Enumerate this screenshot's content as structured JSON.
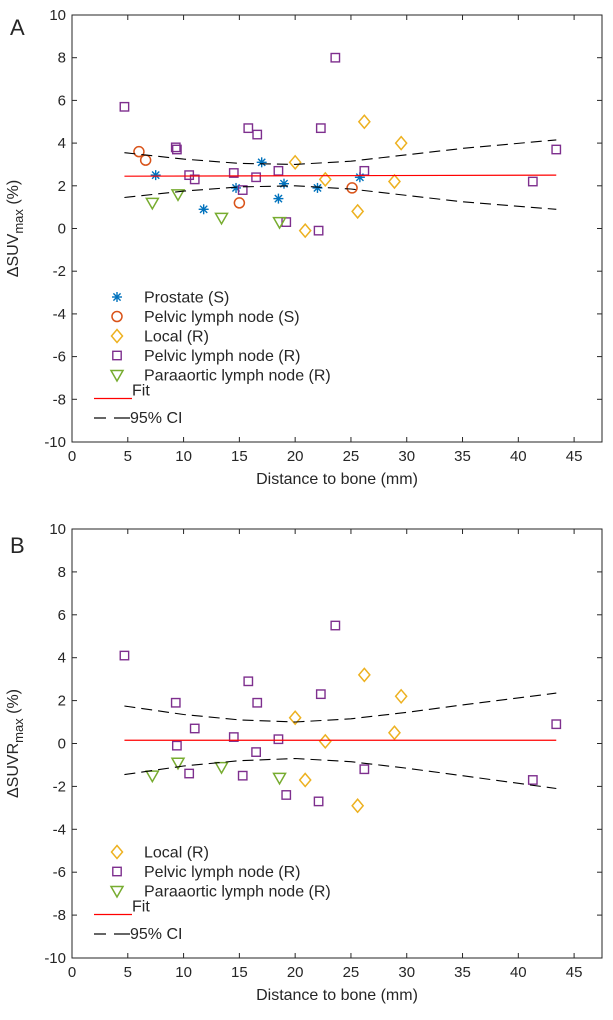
{
  "figure": {
    "background": "#ffffff"
  },
  "chart_data": [
    {
      "panel_label": "A",
      "type": "scatter",
      "xlabel": "Distance to bone (mm)",
      "ylabel": "ΔSUV",
      "ylabel_sub": "max",
      "ylabel_suffix": " (%)",
      "xlim": [
        0,
        47.5
      ],
      "ylim": [
        -10,
        10
      ],
      "xticks": [
        0,
        5,
        10,
        15,
        20,
        25,
        30,
        35,
        40,
        45
      ],
      "yticks": [
        -10,
        -8,
        -6,
        -4,
        -2,
        0,
        2,
        4,
        6,
        8,
        10
      ],
      "grid": false,
      "legend_position": "lower-left",
      "series": [
        {
          "name": "Prostate (S)",
          "marker": "asterisk",
          "color": "#0072BD",
          "points": [
            [
              7.5,
              2.5
            ],
            [
              11.8,
              0.9
            ],
            [
              14.7,
              1.9
            ],
            [
              17.0,
              3.1
            ],
            [
              18.5,
              1.4
            ],
            [
              19.0,
              2.1
            ],
            [
              22.0,
              1.9
            ],
            [
              25.8,
              2.4
            ]
          ]
        },
        {
          "name": "Pelvic lymph node (S)",
          "marker": "circle",
          "color": "#D95319",
          "points": [
            [
              6.0,
              3.6
            ],
            [
              6.6,
              3.2
            ],
            [
              15.0,
              1.2
            ],
            [
              25.1,
              1.9
            ]
          ]
        },
        {
          "name": "Local (R)",
          "marker": "diamond",
          "color": "#EDB120",
          "points": [
            [
              20.0,
              3.1
            ],
            [
              20.9,
              -0.1
            ],
            [
              22.7,
              2.3
            ],
            [
              25.6,
              0.8
            ],
            [
              26.2,
              5.0
            ],
            [
              28.9,
              2.2
            ],
            [
              29.5,
              4.0
            ]
          ]
        },
        {
          "name": "Pelvic lymph node (R)",
          "marker": "square",
          "color": "#7E2F8E",
          "points": [
            [
              4.7,
              5.7
            ],
            [
              9.3,
              3.8
            ],
            [
              9.4,
              3.7
            ],
            [
              10.5,
              2.5
            ],
            [
              11.0,
              2.3
            ],
            [
              14.5,
              2.6
            ],
            [
              15.3,
              1.8
            ],
            [
              15.8,
              4.7
            ],
            [
              16.5,
              2.4
            ],
            [
              16.6,
              4.4
            ],
            [
              18.5,
              2.7
            ],
            [
              19.2,
              0.3
            ],
            [
              22.1,
              -0.1
            ],
            [
              22.3,
              4.7
            ],
            [
              23.6,
              8.0
            ],
            [
              26.2,
              2.7
            ],
            [
              41.3,
              2.2
            ],
            [
              43.4,
              3.7
            ]
          ]
        },
        {
          "name": "Paraaortic lymph node (R)",
          "marker": "triangle-down",
          "color": "#77AC30",
          "points": [
            [
              7.2,
              1.2
            ],
            [
              9.5,
              1.6
            ],
            [
              13.4,
              0.5
            ],
            [
              18.6,
              0.3
            ]
          ]
        }
      ],
      "fit": {
        "name": "Fit",
        "color": "#FF0000",
        "x": [
          4.7,
          43.4
        ],
        "y": [
          2.45,
          2.5
        ]
      },
      "ci": {
        "name": "95% CI",
        "color": "#000000",
        "upper": [
          [
            4.7,
            3.55
          ],
          [
            10,
            3.25
          ],
          [
            15,
            3.05
          ],
          [
            20,
            3.0
          ],
          [
            25,
            3.15
          ],
          [
            30,
            3.45
          ],
          [
            35,
            3.75
          ],
          [
            43.4,
            4.15
          ]
        ],
        "lower": [
          [
            4.7,
            1.45
          ],
          [
            10,
            1.75
          ],
          [
            15,
            1.95
          ],
          [
            20,
            2.0
          ],
          [
            25,
            1.85
          ],
          [
            30,
            1.55
          ],
          [
            35,
            1.25
          ],
          [
            43.4,
            0.9
          ]
        ]
      }
    },
    {
      "panel_label": "B",
      "type": "scatter",
      "xlabel": "Distance to bone (mm)",
      "ylabel": "ΔSUVR",
      "ylabel_sub": "max",
      "ylabel_suffix": " (%)",
      "xlim": [
        0,
        47.5
      ],
      "ylim": [
        -10,
        10
      ],
      "xticks": [
        0,
        5,
        10,
        15,
        20,
        25,
        30,
        35,
        40,
        45
      ],
      "yticks": [
        -10,
        -8,
        -6,
        -4,
        -2,
        0,
        2,
        4,
        6,
        8,
        10
      ],
      "grid": false,
      "legend_position": "lower-left",
      "series": [
        {
          "name": "Local (R)",
          "marker": "diamond",
          "color": "#EDB120",
          "points": [
            [
              20.0,
              1.2
            ],
            [
              20.9,
              -1.7
            ],
            [
              22.7,
              0.1
            ],
            [
              25.6,
              -2.9
            ],
            [
              26.2,
              3.2
            ],
            [
              28.9,
              0.5
            ],
            [
              29.5,
              2.2
            ]
          ]
        },
        {
          "name": "Pelvic lymph node (R)",
          "marker": "square",
          "color": "#7E2F8E",
          "points": [
            [
              4.7,
              4.1
            ],
            [
              9.3,
              1.9
            ],
            [
              9.4,
              -0.1
            ],
            [
              10.5,
              -1.4
            ],
            [
              11.0,
              0.7
            ],
            [
              14.5,
              0.3
            ],
            [
              15.3,
              -1.5
            ],
            [
              15.8,
              2.9
            ],
            [
              16.5,
              -0.4
            ],
            [
              16.6,
              1.9
            ],
            [
              18.5,
              0.2
            ],
            [
              19.2,
              -2.4
            ],
            [
              22.1,
              -2.7
            ],
            [
              22.3,
              2.3
            ],
            [
              23.6,
              5.5
            ],
            [
              26.2,
              -1.2
            ],
            [
              41.3,
              -1.7
            ],
            [
              43.4,
              0.9
            ]
          ]
        },
        {
          "name": "Paraaortic lymph node (R)",
          "marker": "triangle-down",
          "color": "#77AC30",
          "points": [
            [
              7.2,
              -1.5
            ],
            [
              9.5,
              -0.9
            ],
            [
              13.4,
              -1.1
            ],
            [
              18.6,
              -1.6
            ]
          ]
        }
      ],
      "fit": {
        "name": "Fit",
        "color": "#FF0000",
        "x": [
          4.7,
          43.4
        ],
        "y": [
          0.15,
          0.15
        ]
      },
      "ci": {
        "name": "95% CI",
        "color": "#000000",
        "upper": [
          [
            4.7,
            1.75
          ],
          [
            10,
            1.35
          ],
          [
            15,
            1.1
          ],
          [
            20,
            1.0
          ],
          [
            25,
            1.15
          ],
          [
            30,
            1.45
          ],
          [
            35,
            1.8
          ],
          [
            43.4,
            2.35
          ]
        ],
        "lower": [
          [
            4.7,
            -1.45
          ],
          [
            10,
            -1.05
          ],
          [
            15,
            -0.8
          ],
          [
            20,
            -0.7
          ],
          [
            25,
            -0.85
          ],
          [
            30,
            -1.15
          ],
          [
            35,
            -1.5
          ],
          [
            43.4,
            -2.1
          ]
        ]
      }
    }
  ]
}
